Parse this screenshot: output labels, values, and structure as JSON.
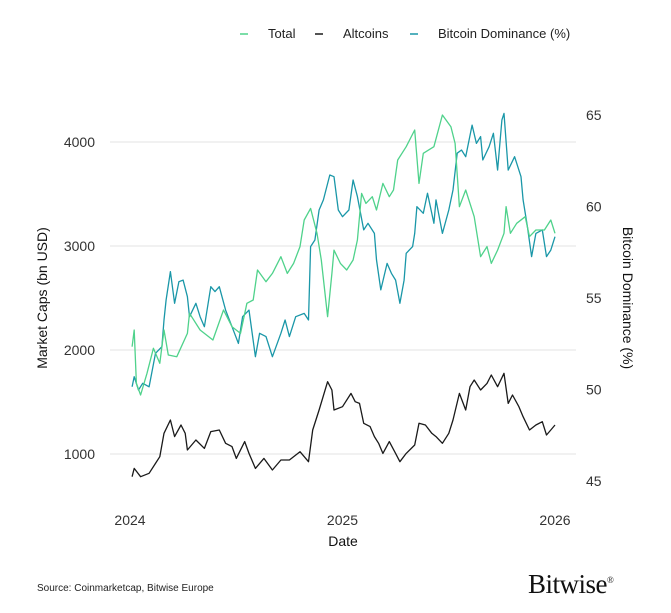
{
  "chart_data": {
    "type": "line",
    "xlabel": "Date",
    "ylabel": "Market Caps (bn USD)",
    "y2label": "Bitcoin Dominance (%)",
    "xticks": [
      "2024",
      "2025",
      "2026"
    ],
    "yticks": [
      "1000",
      "2000",
      "3000",
      "4000"
    ],
    "y2ticks": [
      "45",
      "50",
      "55",
      "60",
      "65"
    ],
    "xlim": [
      2024,
      2026
    ],
    "ylim": [
      700,
      4400
    ],
    "y2lim": [
      44,
      66
    ],
    "grid": "horizontal",
    "legend_position": "top",
    "series": [
      {
        "name": "Total",
        "axis": "left",
        "color": "#4fd28b",
        "x": [
          2024.01,
          2024.02,
          2024.03,
          2024.05,
          2024.08,
          2024.11,
          2024.14,
          2024.16,
          2024.18,
          2024.22,
          2024.27,
          2024.28,
          2024.33,
          2024.39,
          2024.44,
          2024.48,
          2024.52,
          2024.55,
          2024.58,
          2024.6,
          2024.64,
          2024.67,
          2024.71,
          2024.74,
          2024.77,
          2024.8,
          2024.82,
          2024.85,
          2024.88,
          2024.9,
          2024.93,
          2024.95,
          2024.96,
          2024.99,
          2025.02,
          2025.05,
          2025.07,
          2025.09,
          2025.11,
          2025.14,
          2025.16,
          2025.19,
          2025.22,
          2025.24,
          2025.26,
          2025.3,
          2025.34,
          2025.36,
          2025.38,
          2025.43,
          2025.47,
          2025.51,
          2025.53,
          2025.55,
          2025.58,
          2025.62,
          2025.65,
          2025.68,
          2025.7,
          2025.73,
          2025.76,
          2025.77,
          2025.79,
          2025.82,
          2025.86,
          2025.88,
          2025.91,
          2025.95,
          2025.98,
          2026.0
        ],
        "values": [
          2032,
          2192,
          1679,
          1567,
          1776,
          2016,
          1872,
          2192,
          1952,
          1936,
          2160,
          2353,
          2192,
          2096,
          2385,
          2224,
          2160,
          2449,
          2481,
          2769,
          2657,
          2737,
          2897,
          2737,
          2833,
          2994,
          3250,
          3362,
          3122,
          2865,
          2320,
          2737,
          2961,
          2833,
          2769,
          2865,
          3058,
          3506,
          3410,
          3474,
          3346,
          3602,
          3474,
          3538,
          3827,
          3955,
          4115,
          3602,
          3891,
          3955,
          4260,
          4147,
          3987,
          3378,
          3538,
          3282,
          2897,
          2994,
          2833,
          2961,
          3122,
          3378,
          3122,
          3218,
          3282,
          3090,
          3154,
          3154,
          3250,
          3122
        ]
      },
      {
        "name": "Altcoins",
        "axis": "left",
        "color": "#1a1a1a",
        "x": [
          2024.01,
          2024.02,
          2024.05,
          2024.09,
          2024.12,
          2024.14,
          2024.16,
          2024.19,
          2024.21,
          2024.24,
          2024.26,
          2024.27,
          2024.31,
          2024.35,
          2024.38,
          2024.42,
          2024.45,
          2024.48,
          2024.5,
          2024.54,
          2024.56,
          2024.59,
          2024.63,
          2024.67,
          2024.71,
          2024.75,
          2024.8,
          2024.84,
          2024.86,
          2024.89,
          2024.93,
          2024.95,
          2024.96,
          2025.0,
          2025.04,
          2025.06,
          2025.08,
          2025.1,
          2025.13,
          2025.15,
          2025.17,
          2025.19,
          2025.22,
          2025.25,
          2025.27,
          2025.3,
          2025.34,
          2025.36,
          2025.39,
          2025.42,
          2025.44,
          2025.47,
          2025.5,
          2025.52,
          2025.55,
          2025.58,
          2025.6,
          2025.62,
          2025.65,
          2025.68,
          2025.7,
          2025.73,
          2025.76,
          2025.78,
          2025.8,
          2025.83,
          2025.85,
          2025.88,
          2025.91,
          2025.94,
          2025.96,
          2025.98,
          2026.0
        ],
        "values": [
          782,
          862,
          782,
          814,
          910,
          974,
          1199,
          1327,
          1167,
          1279,
          1199,
          1038,
          1135,
          1054,
          1215,
          1231,
          1103,
          1071,
          958,
          1119,
          1006,
          862,
          958,
          846,
          942,
          942,
          1022,
          926,
          1231,
          1423,
          1695,
          1615,
          1423,
          1455,
          1583,
          1503,
          1487,
          1295,
          1263,
          1167,
          1103,
          1006,
          1119,
          1006,
          926,
          1006,
          1087,
          1295,
          1279,
          1199,
          1167,
          1103,
          1199,
          1327,
          1583,
          1423,
          1647,
          1712,
          1615,
          1679,
          1760,
          1647,
          1776,
          1487,
          1567,
          1455,
          1359,
          1231,
          1279,
          1311,
          1183,
          1231,
          1279
        ]
      },
      {
        "name": "Bitcoin Dominance (%)",
        "axis": "right",
        "color": "#1a97a8",
        "x": [
          2024.01,
          2024.02,
          2024.04,
          2024.06,
          2024.09,
          2024.12,
          2024.15,
          2024.16,
          2024.17,
          2024.19,
          2024.21,
          2024.23,
          2024.25,
          2024.27,
          2024.28,
          2024.31,
          2024.33,
          2024.35,
          2024.38,
          2024.4,
          2024.42,
          2024.45,
          2024.48,
          2024.51,
          2024.53,
          2024.56,
          2024.59,
          2024.61,
          2024.64,
          2024.67,
          2024.71,
          2024.73,
          2024.75,
          2024.78,
          2024.82,
          2024.84,
          2024.85,
          2024.87,
          2024.89,
          2024.91,
          2024.94,
          2024.96,
          2024.98,
          2025.0,
          2025.03,
          2025.05,
          2025.07,
          2025.1,
          2025.12,
          2025.15,
          2025.16,
          2025.18,
          2025.21,
          2025.23,
          2025.25,
          2025.27,
          2025.29,
          2025.3,
          2025.33,
          2025.34,
          2025.35,
          2025.38,
          2025.4,
          2025.43,
          2025.44,
          2025.47,
          2025.5,
          2025.52,
          2025.54,
          2025.56,
          2025.58,
          2025.61,
          2025.63,
          2025.65,
          2025.66,
          2025.69,
          2025.71,
          2025.73,
          2025.75,
          2025.76,
          2025.78,
          2025.81,
          2025.84,
          2025.85,
          2025.87,
          2025.89,
          2025.91,
          2025.94,
          2025.96,
          2025.98,
          2026.0
        ],
        "values": [
          50.15,
          50.7,
          49.97,
          50.34,
          50.15,
          51.98,
          52.34,
          53.8,
          54.89,
          56.44,
          54.71,
          55.89,
          55.98,
          55.07,
          53.98,
          54.71,
          53.98,
          53.43,
          55.62,
          55.35,
          55.62,
          54.34,
          53.43,
          52.52,
          53.98,
          54.34,
          51.79,
          53.07,
          52.89,
          51.79,
          53.07,
          53.8,
          52.89,
          53.98,
          54.16,
          53.8,
          57.81,
          58.17,
          59.81,
          60.36,
          61.72,
          61.63,
          59.81,
          59.44,
          59.81,
          61.45,
          60.54,
          58.72,
          59.08,
          58.53,
          57.08,
          55.44,
          56.89,
          56.35,
          55.98,
          54.71,
          55.98,
          57.44,
          57.81,
          58.53,
          59.99,
          59.63,
          60.72,
          59.08,
          60.36,
          58.53,
          59.81,
          60.9,
          62.91,
          63.09,
          62.72,
          64.45,
          63.45,
          63.82,
          62.54,
          63.27,
          64.0,
          61.99,
          64.73,
          65.09,
          61.99,
          62.72,
          61.63,
          60.36,
          58.9,
          57.26,
          58.53,
          58.72,
          57.26,
          57.62,
          58.35
        ]
      }
    ]
  },
  "footer": {
    "source": "Source: Coinmarketcap, Bitwise Europe",
    "logo": "Bitwise",
    "logo_mark": "®"
  }
}
